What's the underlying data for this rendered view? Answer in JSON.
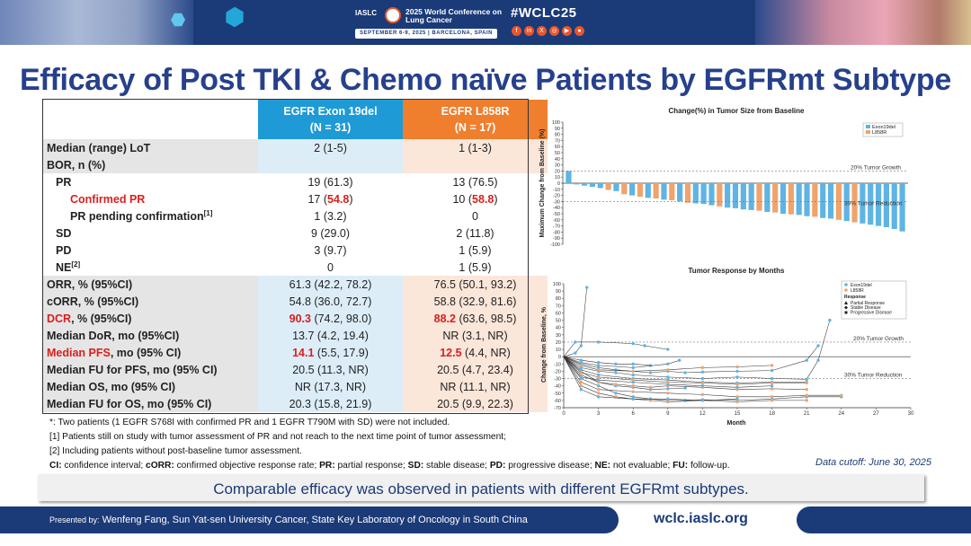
{
  "banner": {
    "org": "IASLC",
    "conference": "2025 World Conference on Lung Cancer",
    "dates": "SEPTEMBER 6-9, 2025 | BARCELONA, SPAIN",
    "hashtag": "#WCLC25",
    "social_icons": [
      "facebook-icon",
      "linkedin-icon",
      "x-icon",
      "instagram-icon",
      "youtube-icon",
      "wechat-icon"
    ],
    "social_glyphs": [
      "f",
      "in",
      "X",
      "◎",
      "▶",
      "●"
    ]
  },
  "title": "Efficacy of Post TKI & Chemo naïve Patients by EGFRmt Subtype",
  "table": {
    "col1": {
      "name": "EGFR Exon 19del",
      "n": "(N = 31)"
    },
    "col2": {
      "name": "EGFR L858R",
      "n": "(N = 17)"
    },
    "rows": [
      {
        "label": "Median (range) LoT",
        "v1": "2 (1-5)",
        "v2": "1 (1-3)"
      },
      {
        "label": "BOR, n (%)",
        "v1": "",
        "v2": ""
      },
      {
        "label": "PR",
        "v1": "19 (61.3)",
        "v2": "13 (76.5)"
      },
      {
        "label": "Confirmed PR",
        "v1a": "17 (",
        "v1b": "54.8",
        "v1c": ")",
        "v2a": "10 (",
        "v2b": "58.8",
        "v2c": ")"
      },
      {
        "label": "PR pending confirmation",
        "sup": "[1]",
        "v1": "1 (3.2)",
        "v2": "0"
      },
      {
        "label": "SD",
        "v1": "9 (29.0)",
        "v2": "2 (11.8)"
      },
      {
        "label": "PD",
        "v1": "3 (9.7)",
        "v2": "1 (5.9)"
      },
      {
        "label": "NE",
        "sup": "[2]",
        "v1": "0",
        "v2": "1 (5.9)"
      },
      {
        "label": "ORR, % (95%CI)",
        "v1": "61.3 (42.2, 78.2)",
        "v2": "76.5 (50.1, 93.2)"
      },
      {
        "label": "cORR, % (95%CI)",
        "v1": "54.8 (36.0, 72.7)",
        "v2": "58.8 (32.9, 81.6)"
      },
      {
        "label_red": "DCR",
        "label_rest": ", % (95%CI)",
        "v1a": "90.3",
        "v1b": " (74.2, 98.0)",
        "v2a": "88.2",
        "v2b": " (63.6, 98.5)"
      },
      {
        "label": "Median DoR, mo (95%CI)",
        "v1": "13.7 (4.2, 19.4)",
        "v2": "NR (3.1, NR)"
      },
      {
        "label_red": "Median PFS",
        "label_rest": ", mo (95% CI)",
        "v1a": "14.1",
        "v1b": " (5.5, 17.9)",
        "v2a": "12.5",
        "v2b": " (4.4, NR)"
      },
      {
        "label": "Median FU for PFS, mo (95% CI)",
        "v1": "20.5 (11.3, NR)",
        "v2": "20.5 (4.7, 23.4)"
      },
      {
        "label": "Median OS, mo (95% CI)",
        "v1": "NR (17.3, NR)",
        "v2": "NR (11.1, NR)"
      },
      {
        "label": "Median FU for OS, mo (95% CI)",
        "v1": "20.3 (15.8, 21.9)",
        "v2": "20.5 (9.9, 22.3)"
      }
    ]
  },
  "notes": {
    "n1": "*: Two patients (1 EGFR S768I with confirmed PR and 1 EGFR T790M with SD) were not included.",
    "n2": "[1] Patients still on study with tumor assessment of PR and not reach to the next time point of tumor assessment;",
    "n3": "[2] Including patients without post-baseline tumor assessment.",
    "abbr": [
      {
        "k": "CI:",
        "v": " confidence interval; "
      },
      {
        "k": "cORR:",
        "v": " confirmed objective response rate; "
      },
      {
        "k": "PR:",
        "v": " partial response; "
      },
      {
        "k": "SD:",
        "v": " stable disease; "
      },
      {
        "k": "PD:",
        "v": " progressive disease; "
      },
      {
        "k": "NE:",
        "v": " not evaluable; "
      },
      {
        "k": "FU:",
        "v": " follow-up."
      }
    ]
  },
  "cutoff": "Data cutoff: June 30, 2025",
  "conclusion": "Comparable efficacy was observed in patients with different EGFRmt subtypes.",
  "footer": {
    "presented_by": "Presented by:",
    "presenter": " Wenfeng Fang, Sun Yat-sen University Cancer, State Key Laboratory of Oncology in South China",
    "site": "wclc.iaslc.org"
  },
  "colors": {
    "exon19": "#5fb4e3",
    "l858r": "#f0a36b",
    "navy": "#1b3a78",
    "red": "#d8201e"
  },
  "chart_data": [
    {
      "type": "bar",
      "title": "Change(%) in Tumor Size from Baseline",
      "ylabel": "Maximum Change from Baseline (%)",
      "ylim": [
        -100,
        100
      ],
      "yticks": [
        "100",
        "90",
        "80",
        "70",
        "60",
        "50",
        "40",
        "30",
        "20",
        "10",
        "0",
        "-10",
        "-20",
        "-30",
        "-40",
        "-50",
        "-60",
        "-70",
        "-80",
        "-90",
        "-100"
      ],
      "ref_lines": [
        {
          "y": 20,
          "label": "20% Tumor Growth"
        },
        {
          "y": -30,
          "label": "30% Tumor Reduction"
        }
      ],
      "legend": [
        "Exon19del",
        "L858R"
      ],
      "legend_position": "top-right",
      "bars": [
        {
          "s": 0,
          "v": 20
        },
        {
          "s": 0,
          "v": -2
        },
        {
          "s": 0,
          "v": -4
        },
        {
          "s": 0,
          "v": -6
        },
        {
          "s": 0,
          "v": -8
        },
        {
          "s": 1,
          "v": -11
        },
        {
          "s": 0,
          "v": -13
        },
        {
          "s": 1,
          "v": -18
        },
        {
          "s": 0,
          "v": -20
        },
        {
          "s": 1,
          "v": -22
        },
        {
          "s": 0,
          "v": -24
        },
        {
          "s": 1,
          "v": -25
        },
        {
          "s": 0,
          "v": -27
        },
        {
          "s": 1,
          "v": -28
        },
        {
          "s": 0,
          "v": -30
        },
        {
          "s": 1,
          "v": -32
        },
        {
          "s": 0,
          "v": -33
        },
        {
          "s": 0,
          "v": -34
        },
        {
          "s": 0,
          "v": -36
        },
        {
          "s": 1,
          "v": -38
        },
        {
          "s": 0,
          "v": -40
        },
        {
          "s": 0,
          "v": -41
        },
        {
          "s": 0,
          "v": -43
        },
        {
          "s": 0,
          "v": -44
        },
        {
          "s": 1,
          "v": -45
        },
        {
          "s": 0,
          "v": -47
        },
        {
          "s": 1,
          "v": -48
        },
        {
          "s": 0,
          "v": -50
        },
        {
          "s": 1,
          "v": -51
        },
        {
          "s": 0,
          "v": -52
        },
        {
          "s": 0,
          "v": -54
        },
        {
          "s": 1,
          "v": -55
        },
        {
          "s": 0,
          "v": -57
        },
        {
          "s": 0,
          "v": -58
        },
        {
          "s": 1,
          "v": -60
        },
        {
          "s": 0,
          "v": -62
        },
        {
          "s": 1,
          "v": -64
        },
        {
          "s": 0,
          "v": -66
        },
        {
          "s": 0,
          "v": -68
        },
        {
          "s": 0,
          "v": -70
        },
        {
          "s": 0,
          "v": -72
        },
        {
          "s": 0,
          "v": -75
        },
        {
          "s": 0,
          "v": -79
        }
      ]
    },
    {
      "type": "line",
      "title": "Tumor Response by Months",
      "xlabel": "Month",
      "ylabel": "Change from Baseline, %",
      "xlim": [
        0,
        30
      ],
      "ylim": [
        -70,
        100
      ],
      "xticks": [
        "0",
        "3",
        "6",
        "9",
        "12",
        "15",
        "18",
        "21",
        "24",
        "27",
        "30"
      ],
      "yticks": [
        "100",
        "90",
        "80",
        "70",
        "60",
        "50",
        "40",
        "30",
        "20",
        "10",
        "0",
        "-10",
        "-20",
        "-30",
        "-40",
        "-50",
        "-60",
        "-70"
      ],
      "ref_lines": [
        {
          "y": 20,
          "label": "20% Tumor Growth"
        },
        {
          "y": -30,
          "label": "30% Tumor Reduction"
        }
      ],
      "legend_series": [
        "Exon19del",
        "L858R"
      ],
      "legend_title": "Response",
      "legend_shapes": [
        "Partial Response",
        "Stable Disease",
        "Progressive Disease"
      ],
      "legend_position": "top-right",
      "series": [
        {
          "s": 0,
          "pts": [
            [
              0,
              0
            ],
            [
              1.5,
              -20
            ],
            [
              3,
              -35
            ],
            [
              4.5,
              -40
            ],
            [
              6,
              -42
            ],
            [
              7.5,
              -45
            ],
            [
              9,
              -44
            ],
            [
              10.5,
              -43
            ]
          ]
        },
        {
          "s": 0,
          "pts": [
            [
              0,
              0
            ],
            [
              1.5,
              -10
            ],
            [
              3,
              -15
            ],
            [
              4.5,
              -18
            ],
            [
              6,
              -20
            ],
            [
              7.5,
              -22
            ],
            [
              9,
              -20
            ],
            [
              10.5,
              -22
            ],
            [
              12,
              -21
            ],
            [
              15,
              -20
            ],
            [
              18,
              -19
            ],
            [
              21,
              -5
            ],
            [
              22,
              15
            ]
          ]
        },
        {
          "s": 0,
          "pts": [
            [
              0,
              0
            ],
            [
              1.5,
              -30
            ],
            [
              3,
              -40
            ],
            [
              4.5,
              -50
            ],
            [
              6,
              -55
            ],
            [
              7.5,
              -58
            ],
            [
              9,
              -60
            ],
            [
              10.5,
              -60
            ],
            [
              12,
              -59
            ],
            [
              15,
              -60
            ],
            [
              18,
              -58
            ],
            [
              21,
              -55
            ],
            [
              24,
              -55
            ]
          ]
        },
        {
          "s": 1,
          "pts": [
            [
              0,
              0
            ],
            [
              1.5,
              -25
            ],
            [
              3,
              -35
            ],
            [
              4.5,
              -38
            ],
            [
              6,
              -40
            ],
            [
              7.5,
              -42
            ],
            [
              9,
              -40
            ],
            [
              12,
              -42
            ],
            [
              15,
              -45
            ],
            [
              18,
              -44
            ],
            [
              21,
              -45
            ]
          ]
        },
        {
          "s": 0,
          "pts": [
            [
              0,
              0
            ],
            [
              1.5,
              -5
            ],
            [
              3,
              -8
            ],
            [
              4.5,
              -10
            ],
            [
              6,
              -10
            ],
            [
              7.5,
              -12
            ]
          ]
        },
        {
          "s": 1,
          "pts": [
            [
              0,
              0
            ],
            [
              1.5,
              -40
            ],
            [
              3,
              -50
            ],
            [
              4.5,
              -55
            ],
            [
              6,
              -58
            ],
            [
              7.5,
              -60
            ],
            [
              9,
              -62
            ],
            [
              12,
              -60
            ],
            [
              15,
              -62
            ],
            [
              18,
              -60
            ],
            [
              21,
              -60
            ]
          ]
        },
        {
          "s": 0,
          "pts": [
            [
              0,
              0
            ],
            [
              1,
              5
            ],
            [
              1.5,
              15
            ],
            [
              2,
              95
            ]
          ]
        },
        {
          "s": 0,
          "pts": [
            [
              0,
              0
            ],
            [
              1.5,
              -15
            ],
            [
              3,
              -20
            ],
            [
              4.5,
              -22
            ],
            [
              6,
              -25
            ],
            [
              9,
              -28
            ],
            [
              12,
              -30
            ],
            [
              15,
              -28
            ],
            [
              18,
              -30
            ],
            [
              21,
              -31
            ],
            [
              22,
              -5
            ],
            [
              23,
              50
            ]
          ]
        },
        {
          "s": 1,
          "pts": [
            [
              0,
              0
            ],
            [
              1.5,
              -35
            ],
            [
              3,
              -45
            ],
            [
              6,
              -48
            ],
            [
              9,
              -50
            ],
            [
              12,
              -52
            ],
            [
              15,
              -55
            ],
            [
              18,
              -55
            ],
            [
              21,
              -53
            ],
            [
              24,
              -53
            ]
          ]
        },
        {
          "s": 0,
          "pts": [
            [
              0,
              0
            ],
            [
              1.5,
              -18
            ],
            [
              3,
              -25
            ],
            [
              6,
              -30
            ],
            [
              9,
              -32
            ],
            [
              12,
              -35
            ],
            [
              15,
              -36
            ],
            [
              18,
              -35
            ],
            [
              21,
              -35
            ]
          ]
        },
        {
          "s": 0,
          "pts": [
            [
              0,
              0
            ],
            [
              1.5,
              -45
            ],
            [
              3,
              -55
            ],
            [
              6,
              -58
            ],
            [
              9,
              -58
            ],
            [
              12,
              -60
            ],
            [
              15,
              -58
            ]
          ]
        },
        {
          "s": 1,
          "pts": [
            [
              0,
              0
            ],
            [
              1.5,
              -12
            ],
            [
              3,
              -18
            ],
            [
              6,
              -20
            ],
            [
              9,
              -18
            ],
            [
              12,
              -15
            ],
            [
              15,
              -14
            ],
            [
              18,
              -12
            ]
          ]
        },
        {
          "s": 0,
          "pts": [
            [
              0,
              0
            ],
            [
              1.5,
              -8
            ],
            [
              3,
              -12
            ],
            [
              6,
              -15
            ],
            [
              9,
              -10
            ],
            [
              10,
              -5
            ]
          ]
        },
        {
          "s": 0,
          "pts": [
            [
              0,
              0
            ],
            [
              1.5,
              -28
            ],
            [
              3,
              -32
            ],
            [
              6,
              -35
            ],
            [
              9,
              -38
            ],
            [
              12,
              -40
            ],
            [
              15,
              -42
            ],
            [
              18,
              -40
            ]
          ]
        },
        {
          "s": 1,
          "pts": [
            [
              0,
              0
            ],
            [
              1.5,
              -22
            ],
            [
              3,
              -28
            ],
            [
              6,
              -32
            ],
            [
              9,
              -35
            ],
            [
              12,
              -36
            ],
            [
              15,
              -38
            ],
            [
              18,
              -36
            ],
            [
              21,
              -36
            ]
          ]
        },
        {
          "s": 0,
          "pts": [
            [
              0,
              0
            ],
            [
              1,
              20
            ],
            [
              3,
              20
            ],
            [
              6,
              18
            ],
            [
              7,
              15
            ],
            [
              9,
              10
            ]
          ]
        }
      ]
    }
  ]
}
